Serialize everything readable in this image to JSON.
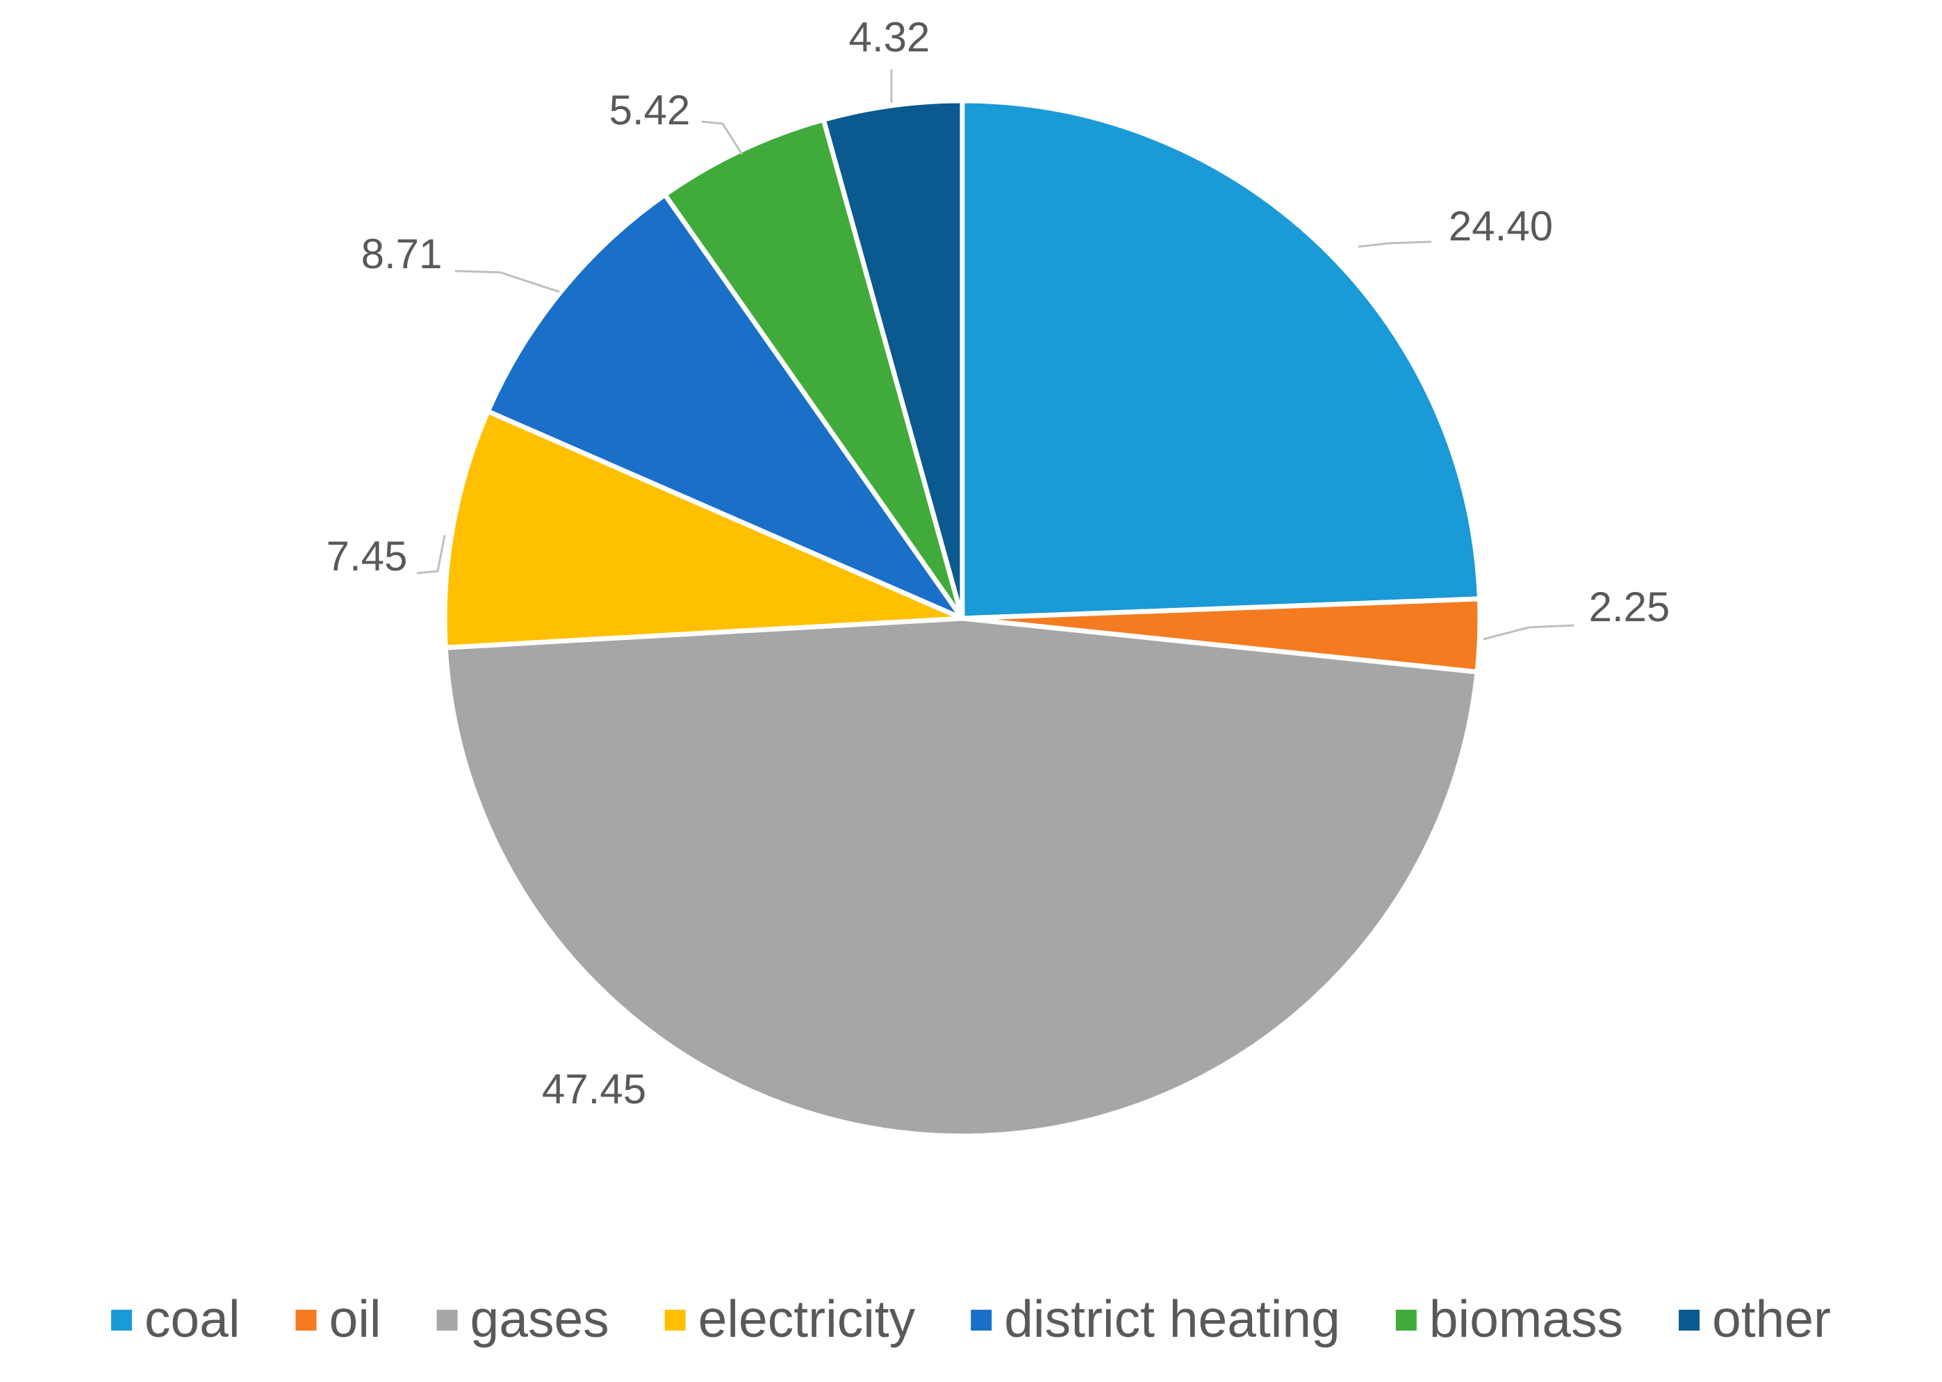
{
  "chart_data": {
    "type": "pie",
    "title": "",
    "categories": [
      "coal",
      "oil",
      "gases",
      "electricity",
      "district heating",
      "biomass",
      "other"
    ],
    "values": [
      24.4,
      2.25,
      47.45,
      7.45,
      8.71,
      5.42,
      4.32
    ],
    "labels": [
      "24.40",
      "2.25",
      "47.45",
      "7.45",
      "8.71",
      "5.42",
      "4.32"
    ],
    "colors": [
      "#1a9ad6",
      "#f57b20",
      "#a6a6a6",
      "#ffc000",
      "#1a6fc9",
      "#40ab3b",
      "#0a5a8f"
    ],
    "start_angle_deg": 0,
    "direction": "clockwise",
    "legend": {
      "position": "bottom",
      "entries": [
        "coal",
        "oil",
        "gases",
        "electricity",
        "district heating",
        "biomass",
        "other"
      ]
    }
  }
}
